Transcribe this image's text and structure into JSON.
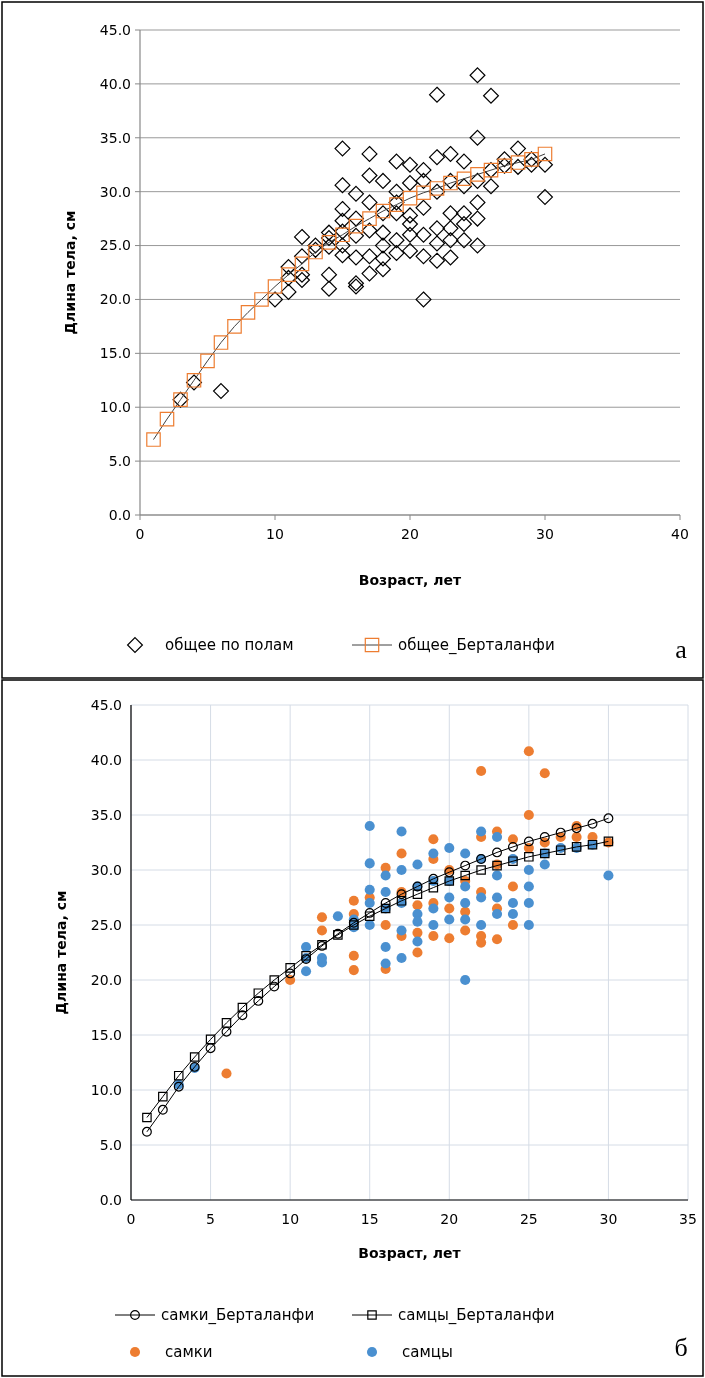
{
  "chart_data": [
    {
      "type": "scatter",
      "xlabel": "Возраст, лет",
      "ylabel": "Длина тела, см",
      "xlim": [
        0,
        40
      ],
      "xticks": [
        0,
        10,
        20,
        30,
        40
      ],
      "ylim": [
        0,
        45
      ],
      "yticks": [
        {
          "value": 0,
          "label": "0.0"
        },
        {
          "value": 5,
          "label": "5.0"
        },
        {
          "value": 10,
          "label": "10.0"
        },
        {
          "value": 15,
          "label": "15.0"
        },
        {
          "value": 20,
          "label": "20.0"
        },
        {
          "value": 25,
          "label": "25.0"
        },
        {
          "value": 30,
          "label": "30.0"
        },
        {
          "value": 35,
          "label": "35.0"
        },
        {
          "value": 40,
          "label": "40.0"
        },
        {
          "value": 45,
          "label": "45.0"
        }
      ],
      "grid": "y",
      "legend": "bottom",
      "annotations": [
        "а"
      ],
      "series": [
        {
          "name": "общее по полам",
          "type": "scatter",
          "marker": "diamond",
          "color": "#000000",
          "x": [
            3,
            4,
            6,
            10,
            11,
            11,
            11,
            12,
            12,
            12,
            12,
            13,
            13,
            14,
            14,
            14,
            14,
            14,
            15,
            15,
            15,
            15,
            15,
            15,
            15,
            16,
            16,
            16,
            16,
            16,
            16,
            17,
            17,
            17,
            17,
            17,
            17,
            18,
            18,
            18,
            18,
            18,
            18,
            19,
            19,
            19,
            19,
            19,
            19,
            20,
            20,
            20,
            20,
            20,
            20,
            21,
            21,
            21,
            21,
            21,
            21,
            22,
            22,
            22,
            22,
            22,
            22,
            23,
            23,
            23,
            23,
            23,
            23,
            24,
            24,
            24,
            24,
            24,
            25,
            25,
            25,
            25,
            25,
            25,
            26,
            26,
            26,
            27,
            27,
            28,
            28,
            29,
            29,
            30,
            30
          ],
          "values": [
            10.7,
            12.3,
            11.5,
            20.0,
            20.7,
            22.0,
            23.0,
            21.8,
            22.3,
            25.8,
            24.0,
            24.6,
            25.0,
            24.9,
            22.3,
            21.0,
            26.2,
            25.7,
            34.0,
            30.6,
            28.4,
            27.3,
            26.3,
            25.0,
            24.1,
            21.2,
            21.5,
            23.9,
            27.5,
            29.8,
            25.9,
            33.5,
            31.5,
            29.0,
            26.4,
            24.0,
            22.4,
            28.0,
            31.0,
            26.2,
            23.8,
            22.8,
            25.0,
            32.8,
            30.0,
            28.0,
            25.5,
            24.3,
            29.0,
            32.5,
            30.8,
            27.8,
            26.0,
            24.5,
            27.0,
            20.0,
            31.0,
            32.0,
            26.0,
            24.0,
            28.5,
            39.0,
            33.2,
            30.0,
            26.6,
            23.6,
            25.2,
            33.5,
            31.0,
            28.0,
            26.6,
            23.9,
            25.5,
            32.8,
            30.5,
            27.0,
            25.5,
            28.0,
            40.8,
            35.0,
            31.0,
            29.0,
            27.5,
            25.0,
            38.9,
            32.0,
            30.5,
            32.4,
            33.0,
            34.0,
            32.3,
            32.5,
            33.0,
            29.5,
            32.5
          ]
        },
        {
          "name": "общее_Берталанфи",
          "type": "line",
          "marker": "square",
          "color": "#ed7d31",
          "x": [
            1,
            2,
            3,
            4,
            5,
            6,
            7,
            8,
            9,
            10,
            11,
            12,
            13,
            14,
            15,
            16,
            17,
            18,
            19,
            20,
            21,
            22,
            23,
            24,
            25,
            26,
            27,
            28,
            29,
            30
          ],
          "values": [
            7.0,
            8.9,
            10.7,
            12.5,
            14.3,
            16.0,
            17.5,
            18.8,
            20.0,
            21.2,
            22.3,
            23.3,
            24.4,
            25.3,
            26.0,
            26.8,
            27.5,
            28.2,
            28.8,
            29.4,
            29.9,
            30.3,
            30.8,
            31.2,
            31.6,
            32.0,
            32.4,
            32.7,
            33.0,
            33.5
          ]
        }
      ]
    },
    {
      "type": "scatter",
      "xlabel": "Возраст, лет",
      "ylabel": "Длина тела, см",
      "xlim": [
        0,
        35
      ],
      "xticks": [
        0,
        5,
        10,
        15,
        20,
        25,
        30,
        35
      ],
      "ylim": [
        0,
        45
      ],
      "yticks": [
        {
          "value": 0,
          "label": "0.0"
        },
        {
          "value": 5,
          "label": "5.0"
        },
        {
          "value": 10,
          "label": "10.0"
        },
        {
          "value": 15,
          "label": "15.0"
        },
        {
          "value": 20,
          "label": "20.0"
        },
        {
          "value": 25,
          "label": "25.0"
        },
        {
          "value": 30,
          "label": "30.0"
        },
        {
          "value": 35,
          "label": "35.0"
        },
        {
          "value": 40,
          "label": "40.0"
        },
        {
          "value": 45,
          "label": "45.0"
        }
      ],
      "grid": true,
      "legend": "bottom",
      "annotations": [
        "б"
      ],
      "series": [
        {
          "name": "самки_Берталанфи",
          "type": "line",
          "marker": "circle",
          "color": "#000000",
          "x": [
            1,
            2,
            3,
            4,
            5,
            6,
            7,
            8,
            9,
            10,
            11,
            12,
            13,
            14,
            15,
            16,
            17,
            18,
            19,
            20,
            21,
            22,
            23,
            24,
            25,
            26,
            27,
            28,
            29,
            30
          ],
          "values": [
            6.2,
            8.2,
            10.3,
            12.1,
            13.8,
            15.3,
            16.8,
            18.1,
            19.4,
            20.6,
            21.9,
            23.1,
            24.2,
            25.2,
            26.1,
            27.0,
            27.8,
            28.5,
            29.2,
            29.8,
            30.4,
            31.0,
            31.6,
            32.1,
            32.6,
            33.0,
            33.4,
            33.8,
            34.2,
            34.7
          ]
        },
        {
          "name": "самцы_Берталанфи",
          "type": "line",
          "marker": "square",
          "color": "#000000",
          "x": [
            1,
            2,
            3,
            4,
            5,
            6,
            7,
            8,
            9,
            10,
            11,
            12,
            13,
            14,
            15,
            16,
            17,
            18,
            19,
            20,
            21,
            22,
            23,
            24,
            25,
            26,
            27,
            28,
            29,
            30
          ],
          "values": [
            7.5,
            9.4,
            11.3,
            13.0,
            14.6,
            16.1,
            17.5,
            18.8,
            20.0,
            21.1,
            22.2,
            23.2,
            24.1,
            25.0,
            25.8,
            26.5,
            27.2,
            27.8,
            28.4,
            29.0,
            29.5,
            30.0,
            30.4,
            30.8,
            31.2,
            31.5,
            31.8,
            32.1,
            32.3,
            32.6
          ]
        },
        {
          "name": "самки",
          "type": "scatter",
          "marker": "circle",
          "color": "#ed7d31",
          "x": [
            6,
            10,
            12,
            12,
            14,
            14,
            14,
            14,
            15,
            16,
            16,
            16,
            17,
            17,
            17,
            18,
            18,
            18,
            19,
            19,
            19,
            19,
            20,
            20,
            20,
            21,
            21,
            21,
            22,
            22,
            22,
            22,
            22,
            23,
            23,
            23,
            23,
            24,
            24,
            24,
            25,
            25,
            25,
            26,
            26,
            27,
            28,
            28,
            29,
            30
          ],
          "values": [
            11.5,
            20.0,
            25.7,
            24.5,
            27.2,
            26.0,
            22.2,
            20.9,
            27.5,
            30.2,
            25.0,
            21.0,
            31.5,
            28.0,
            24.0,
            26.8,
            24.3,
            22.5,
            32.8,
            31.0,
            27.0,
            24.0,
            30.0,
            26.5,
            23.8,
            29.0,
            26.2,
            24.5,
            39.0,
            33.0,
            28.0,
            24.0,
            23.4,
            33.5,
            30.5,
            26.5,
            23.7,
            32.8,
            28.5,
            25.0,
            40.8,
            35.0,
            32.0,
            38.8,
            32.5,
            33.0,
            34.0,
            33.0,
            33.0,
            32.5
          ]
        },
        {
          "name": "самцы",
          "type": "scatter",
          "marker": "circle",
          "color": "#4a90d0",
          "x": [
            3,
            4,
            11,
            11,
            11,
            12,
            12,
            13,
            14,
            14,
            15,
            15,
            15,
            15,
            15,
            16,
            16,
            16,
            16,
            16,
            17,
            17,
            17,
            17,
            17,
            18,
            18,
            18,
            18,
            18,
            19,
            19,
            19,
            19,
            20,
            20,
            20,
            20,
            21,
            21,
            21,
            21,
            21,
            22,
            22,
            22,
            22,
            23,
            23,
            23,
            23,
            24,
            24,
            24,
            25,
            25,
            25,
            25,
            26,
            26,
            27,
            28,
            29,
            30
          ],
          "values": [
            10.5,
            12.0,
            23.0,
            20.8,
            22.0,
            22.0,
            21.6,
            25.8,
            25.5,
            24.8,
            34.0,
            30.6,
            28.2,
            27.0,
            25.0,
            21.5,
            23.0,
            28.0,
            29.5,
            26.5,
            33.5,
            30.0,
            27.0,
            24.5,
            22.0,
            30.5,
            28.5,
            26.0,
            23.5,
            25.3,
            31.5,
            29.0,
            26.5,
            25.0,
            32.0,
            29.0,
            27.5,
            25.5,
            20.0,
            31.5,
            28.5,
            27.0,
            25.5,
            33.5,
            31.0,
            27.5,
            25.0,
            33.0,
            29.5,
            27.5,
            26.0,
            31.0,
            27.0,
            26.0,
            30.0,
            28.5,
            27.0,
            25.0,
            31.5,
            30.5,
            32.0,
            32.0,
            32.3,
            29.5
          ]
        }
      ]
    }
  ]
}
